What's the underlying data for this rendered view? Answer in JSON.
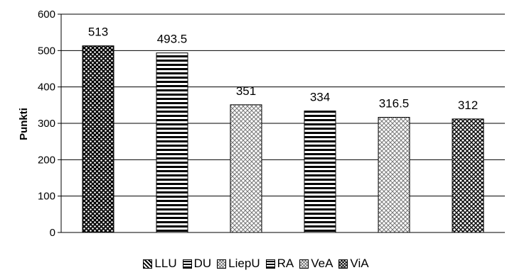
{
  "chart_data": {
    "type": "bar",
    "categories": [
      "LLU",
      "DU",
      "LiepU",
      "RA",
      "VeA",
      "ViA"
    ],
    "values": [
      513,
      493.5,
      351,
      334,
      316.5,
      312
    ],
    "data_labels": [
      "513",
      "493.5",
      "351",
      "334",
      "316.5",
      "312"
    ],
    "ylabel": "Punkti",
    "xlabel": "",
    "ylim": [
      0,
      600
    ],
    "yticks": [
      "0",
      "100",
      "200",
      "300",
      "400",
      "500",
      "600"
    ],
    "grid": "horizontal",
    "legend_position": "bottom",
    "patterns": [
      "dots-dark",
      "horizontal-stripes",
      "diamond-light",
      "horizontal-stripes",
      "diamond-light",
      "checker-dark"
    ]
  }
}
